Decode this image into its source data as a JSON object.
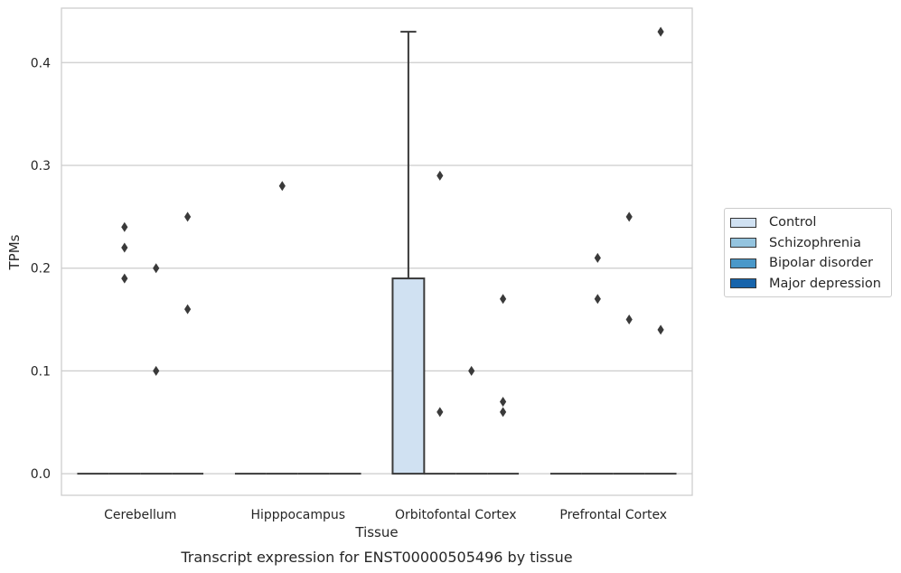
{
  "chart_data": {
    "type": "box",
    "caption": "Transcript expression for ENST00000505496 by tissue",
    "xlabel": "Tissue",
    "ylabel": "TPMs",
    "ylim": [
      -0.021,
      0.453
    ],
    "yticks": [
      "0.0",
      "0.1",
      "0.2",
      "0.3",
      "0.4"
    ],
    "ytick_values": [
      0.0,
      0.1,
      0.2,
      0.3,
      0.4
    ],
    "grid": true,
    "legend_placement": "right",
    "categories": [
      "Cerebellum",
      "Hipppocampus",
      "Orbitofontal Cortex",
      "Prefrontal Cortex"
    ],
    "series": [
      {
        "name": "Control",
        "color": "#d0e1f2"
      },
      {
        "name": "Schizophrenia",
        "color": "#94c4df"
      },
      {
        "name": "Bipolar disorder",
        "color": "#4a98c9"
      },
      {
        "name": "Major depression",
        "color": "#1764ab"
      }
    ],
    "boxes": [
      {
        "category": 0,
        "series": 0,
        "q1": 0,
        "median": 0,
        "q3": 0,
        "whisker_low": 0,
        "whisker_high": 0,
        "outliers": []
      },
      {
        "category": 0,
        "series": 1,
        "q1": 0,
        "median": 0,
        "q3": 0,
        "whisker_low": 0,
        "whisker_high": 0,
        "outliers": [
          0.24,
          0.22,
          0.19
        ]
      },
      {
        "category": 0,
        "series": 2,
        "q1": 0,
        "median": 0,
        "q3": 0,
        "whisker_low": 0,
        "whisker_high": 0,
        "outliers": [
          0.2,
          0.1
        ]
      },
      {
        "category": 0,
        "series": 3,
        "q1": 0,
        "median": 0,
        "q3": 0,
        "whisker_low": 0,
        "whisker_high": 0,
        "outliers": [
          0.25,
          0.16
        ]
      },
      {
        "category": 1,
        "series": 0,
        "q1": 0,
        "median": 0,
        "q3": 0,
        "whisker_low": 0,
        "whisker_high": 0,
        "outliers": []
      },
      {
        "category": 1,
        "series": 1,
        "q1": 0,
        "median": 0,
        "q3": 0,
        "whisker_low": 0,
        "whisker_high": 0,
        "outliers": [
          0.28
        ]
      },
      {
        "category": 1,
        "series": 2,
        "q1": 0,
        "median": 0,
        "q3": 0,
        "whisker_low": 0,
        "whisker_high": 0,
        "outliers": []
      },
      {
        "category": 1,
        "series": 3,
        "q1": 0,
        "median": 0,
        "q3": 0,
        "whisker_low": 0,
        "whisker_high": 0,
        "outliers": []
      },
      {
        "category": 2,
        "series": 0,
        "q1": 0,
        "median": 0,
        "q3": 0.19,
        "whisker_low": 0,
        "whisker_high": 0.43,
        "outliers": []
      },
      {
        "category": 2,
        "series": 1,
        "q1": 0,
        "median": 0,
        "q3": 0,
        "whisker_low": 0,
        "whisker_high": 0,
        "outliers": [
          0.29,
          0.06
        ]
      },
      {
        "category": 2,
        "series": 2,
        "q1": 0,
        "median": 0,
        "q3": 0,
        "whisker_low": 0,
        "whisker_high": 0,
        "outliers": [
          0.1
        ]
      },
      {
        "category": 2,
        "series": 3,
        "q1": 0,
        "median": 0,
        "q3": 0,
        "whisker_low": 0,
        "whisker_high": 0,
        "outliers": [
          0.17,
          0.07,
          0.06
        ]
      },
      {
        "category": 3,
        "series": 0,
        "q1": 0,
        "median": 0,
        "q3": 0,
        "whisker_low": 0,
        "whisker_high": 0,
        "outliers": []
      },
      {
        "category": 3,
        "series": 1,
        "q1": 0,
        "median": 0,
        "q3": 0,
        "whisker_low": 0,
        "whisker_high": 0,
        "outliers": [
          0.21,
          0.17
        ]
      },
      {
        "category": 3,
        "series": 2,
        "q1": 0,
        "median": 0,
        "q3": 0,
        "whisker_low": 0,
        "whisker_high": 0,
        "outliers": [
          0.25,
          0.15
        ]
      },
      {
        "category": 3,
        "series": 3,
        "q1": 0,
        "median": 0,
        "q3": 0,
        "whisker_low": 0,
        "whisker_high": 0,
        "outliers": [
          0.43,
          0.14
        ]
      }
    ]
  }
}
